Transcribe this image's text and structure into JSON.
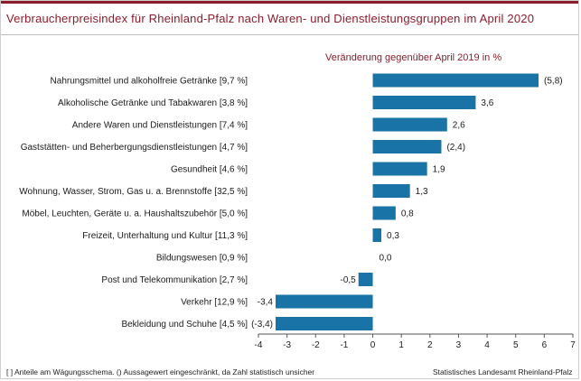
{
  "header": {
    "title": "Verbraucherpreisindex für Rheinland-Pfalz nach Waren- und Dienstleistungsgruppen im April 2020",
    "accent_color": "#8c1c2b"
  },
  "chart_data": {
    "type": "bar",
    "orientation": "horizontal",
    "title": "Verbraucherpreisindex für Rheinland-Pfalz nach Waren- und Dienstleistungsgruppen im April 2020",
    "subtitle": "Veränderung  gegenüber April 2019 in %",
    "categories": [
      "Nahrungsmittel und alkoholfreie Getränke [9,7 %]",
      "Alkoholische Getränke und Tabakwaren [3,8 %]",
      "Andere Waren und Dienstleistungen [7,4 %]",
      "Gaststätten- und Beherbergungsdienstleistungen [4,7 %]",
      "Gesundheit [4,6 %]",
      "Wohnung, Wasser, Strom, Gas u. a. Brennstoffe [32,5 %]",
      "Möbel, Leuchten, Geräte u. a. Haushaltszubehör  [5,0 %]",
      "Freizeit, Unterhaltung und Kultur [11,3 %]",
      "Bildungswesen [0,9 %]",
      "Post und Telekommunikation [2,7 %]",
      "Verkehr [12,9 %]",
      "Bekleidung und Schuhe [4,5 %]"
    ],
    "values": [
      5.8,
      3.6,
      2.6,
      2.4,
      1.9,
      1.3,
      0.8,
      0.3,
      0.0,
      -0.5,
      -3.4,
      -3.4
    ],
    "value_labels": [
      "(5,8)",
      "3,6",
      "2,6",
      "(2,4)",
      "1,9",
      "1,3",
      "0,8",
      "0,3",
      "0,0",
      "-0,5",
      "-3,4",
      "(-3,4)"
    ],
    "xlim": [
      -4,
      7
    ],
    "xticks": [
      -4,
      -3,
      -2,
      -1,
      0,
      1,
      2,
      3,
      4,
      5,
      6,
      7
    ],
    "bar_color": "#1a73a6",
    "grid": false,
    "legend": "none"
  },
  "footer": {
    "note": "[ ] Anteile am Wägungsschema. () Aussagewert eingeschränkt, da Zahl statistisch unsicher",
    "source": "Statistisches Landesamt Rheinland-Pfalz"
  }
}
